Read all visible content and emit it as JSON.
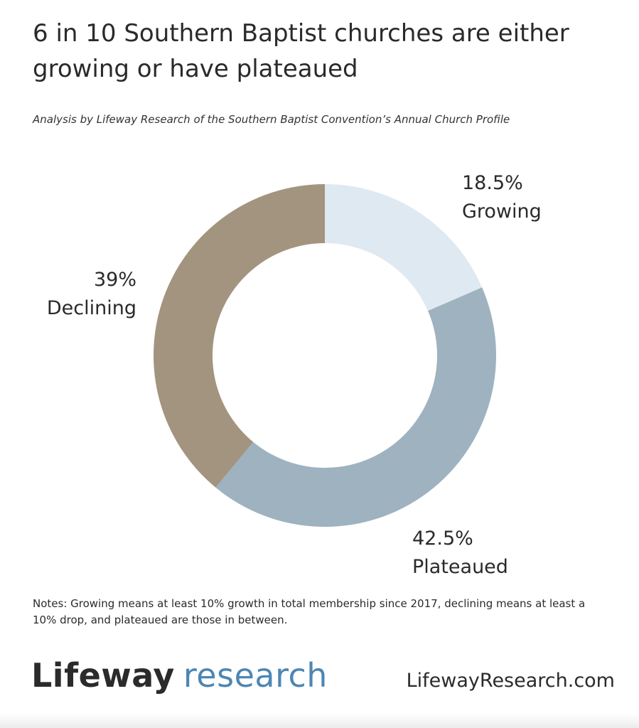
{
  "title": "6 in 10 Southern Baptist churches are either growing or have plateaued",
  "subtitle": "Analysis by Lifeway Research of the Southern Baptist Convention’s Annual Church Profile",
  "chart_data": {
    "type": "pie",
    "donut": true,
    "start": "12 o'clock, clockwise",
    "slices": [
      {
        "label": "Growing",
        "value": 18.5,
        "display": "18.5%",
        "color": "#dfe9f2"
      },
      {
        "label": "Plateaued",
        "value": 42.5,
        "display": "42.5%",
        "color": "#9eb2bf"
      },
      {
        "label": "Declining",
        "value": 39,
        "display": "39%",
        "color": "#a3947f"
      }
    ]
  },
  "notes": "Notes: Growing means at least 10% growth in total membership since 2017, declining means at least a 10% drop, and plateaued are those in between.",
  "footer": {
    "logo_brand": "Lifeway",
    "logo_sub": "research",
    "website": "LifewayResearch.com"
  }
}
